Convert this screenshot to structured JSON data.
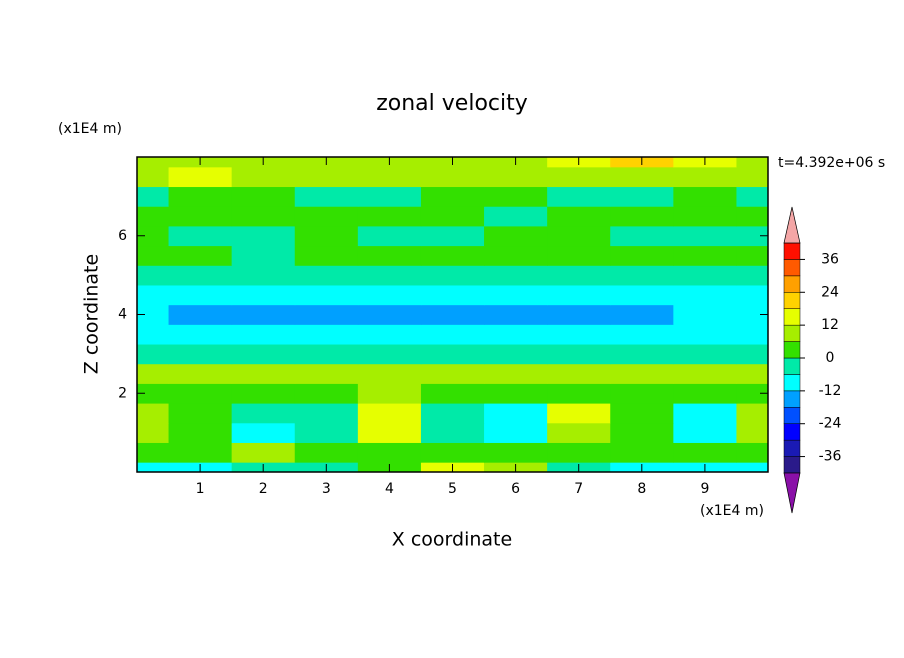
{
  "chart_data": {
    "type": "contour",
    "title": "zonal velocity",
    "x_label": "X coordinate",
    "y_label": "Z coordinate",
    "x_unit": "(x1E4 m)",
    "y_unit": "(x1E4 m)",
    "time_label": "t=4.392e+06 s",
    "xlim": [
      0,
      10
    ],
    "ylim": [
      0,
      8
    ],
    "xticks": [
      1,
      2,
      3,
      4,
      5,
      6,
      7,
      8,
      9
    ],
    "yticks": [
      2,
      4,
      6
    ],
    "x": [
      0,
      1,
      2,
      3,
      4,
      5,
      6,
      7,
      8,
      9,
      10
    ],
    "y": [
      0,
      0.5,
      1,
      1.5,
      2,
      2.5,
      3,
      3.5,
      4,
      4.5,
      5,
      5.5,
      6,
      6.5,
      7,
      7.5,
      8
    ],
    "z": [
      [
        -7,
        -7,
        -6,
        -5,
        3,
        12,
        10,
        -2,
        -7,
        -7,
        -7
      ],
      [
        4,
        3,
        8,
        2,
        4,
        2,
        5,
        3,
        3,
        2,
        5
      ],
      [
        10,
        4,
        -7,
        -6,
        13,
        -6,
        -10,
        11,
        4,
        -10,
        8
      ],
      [
        8,
        5,
        -5,
        -4,
        14,
        -4,
        -9,
        12,
        3,
        -10,
        9
      ],
      [
        5,
        3,
        2,
        4,
        6,
        2,
        3,
        3,
        4,
        4,
        5
      ],
      [
        8,
        9,
        8,
        7,
        8,
        9,
        8,
        8,
        9,
        8,
        8
      ],
      [
        -3,
        -3,
        -3,
        -3,
        -3,
        -3,
        -3,
        -3,
        -3,
        -3,
        -3
      ],
      [
        -9,
        -8,
        -9,
        -9,
        -9,
        -8,
        -9,
        -9,
        -9,
        -9,
        -9
      ],
      [
        -9,
        -14,
        -14,
        -14,
        -14,
        -15,
        -15,
        -14,
        -14,
        -9,
        -9
      ],
      [
        -8,
        -8,
        -8,
        -8,
        -8,
        -8,
        -8,
        -8,
        -8,
        -8,
        -8
      ],
      [
        -4,
        -5,
        -3,
        -5,
        -4,
        -4,
        -4,
        -3,
        -4,
        -5,
        -3
      ],
      [
        3,
        2,
        -2,
        3,
        2,
        4,
        3,
        2,
        3,
        2,
        3
      ],
      [
        4,
        -3,
        -3,
        2,
        -3,
        -3,
        3,
        4,
        -2,
        -3,
        -3
      ],
      [
        3,
        2,
        4,
        3,
        2,
        3,
        -2,
        3,
        3,
        2,
        3
      ],
      [
        -3,
        4,
        2,
        -4,
        -3,
        3,
        4,
        -2,
        -4,
        2,
        -3
      ],
      [
        9,
        12,
        8,
        7,
        8,
        9,
        7,
        8,
        9,
        8,
        10
      ],
      [
        10,
        9,
        8,
        10,
        9,
        10,
        11,
        13,
        19,
        12,
        10
      ]
    ],
    "levels": [
      -42,
      -36,
      -30,
      -24,
      -18,
      -12,
      -6,
      0,
      6,
      12,
      18,
      24,
      30,
      36,
      42
    ],
    "colors": [
      "#2a1a8a",
      "#1a1ab4",
      "#0000ff",
      "#0050ff",
      "#00a0ff",
      "#00ffff",
      "#00eaa8",
      "#33e000",
      "#a6ee00",
      "#e6ff00",
      "#ffd200",
      "#ffa000",
      "#ff5a00",
      "#ff1000"
    ],
    "under_color": "#8a10a8",
    "over_color": "#f4a6a6",
    "cbar_ticks": [
      36,
      24,
      12,
      0,
      -12,
      -24,
      -36
    ]
  }
}
